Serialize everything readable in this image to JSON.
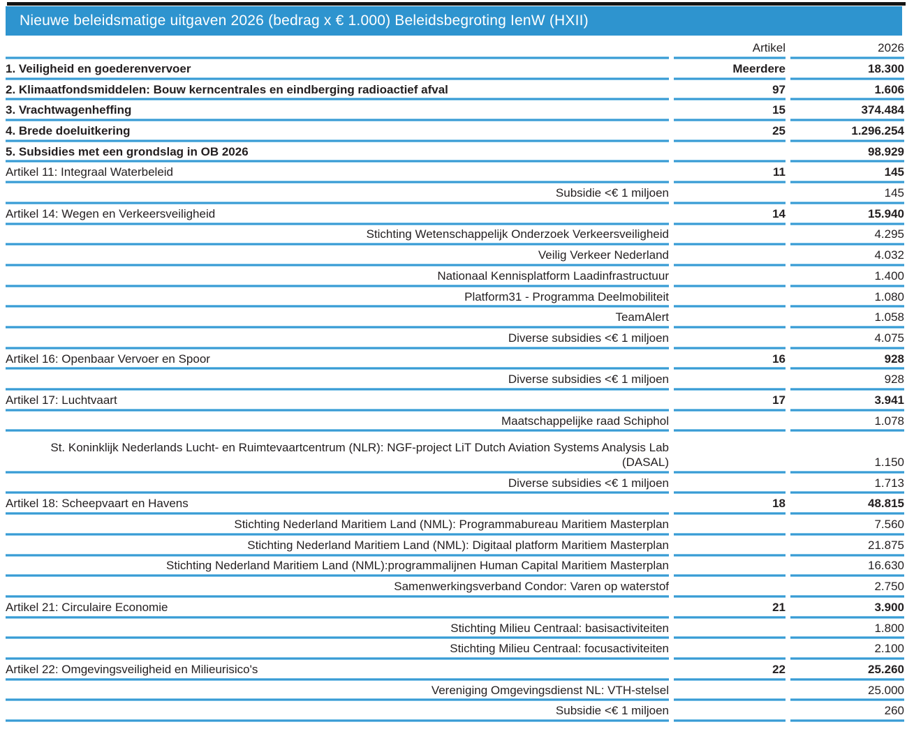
{
  "title": "Nieuwe beleidsmatige uitgaven 2026 (bedrag x € 1.000) Beleidsbegroting IenW (HXII)",
  "columns": {
    "artikel": "Artikel",
    "year": "2026"
  },
  "colors": {
    "accent_blue": "#2e94cf",
    "separator_light": "#a9dcf4",
    "text": "#231f20",
    "title_text": "#ffffff",
    "top_rule": "#141414"
  },
  "rows": [
    {
      "type": "main",
      "label": "1. Veiligheid en goederenvervoer",
      "artikel": "Meerdere",
      "amount": "18.300"
    },
    {
      "type": "main",
      "label": "2. Klimaatfondsmiddelen: Bouw kerncentrales en eindberging radioactief afval",
      "artikel": "97",
      "amount": "1.606"
    },
    {
      "type": "main",
      "label": "3. Vrachtwagenheffing",
      "artikel": "15",
      "amount": "374.484"
    },
    {
      "type": "main",
      "label": "4. Brede doeluitkering",
      "artikel": "25",
      "amount": "1.296.254"
    },
    {
      "type": "main",
      "label": "5. Subsidies met een grondslag in OB 2026",
      "artikel": "",
      "amount": "98.929"
    },
    {
      "type": "artikel",
      "label": "Artikel 11: Integraal Waterbeleid",
      "artikel": "11",
      "amount": "145"
    },
    {
      "type": "sub",
      "label": "Subsidie <€ 1 miljoen",
      "artikel": "",
      "amount": "145"
    },
    {
      "type": "artikel",
      "label": "Artikel 14: Wegen en Verkeersveiligheid",
      "artikel": "14",
      "amount": "15.940"
    },
    {
      "type": "sub",
      "label": "Stichting Wetenschappelijk Onderzoek Verkeersveiligheid",
      "artikel": "",
      "amount": "4.295"
    },
    {
      "type": "sub",
      "label": "Veilig Verkeer Nederland",
      "artikel": "",
      "amount": "4.032"
    },
    {
      "type": "sub",
      "label": "Nationaal Kennisplatform Laadinfrastructuur",
      "artikel": "",
      "amount": "1.400"
    },
    {
      "type": "sub",
      "label": "Platform31 - Programma Deelmobiliteit",
      "artikel": "",
      "amount": "1.080"
    },
    {
      "type": "sub",
      "label": "TeamAlert",
      "artikel": "",
      "amount": "1.058"
    },
    {
      "type": "sub",
      "label": "Diverse subsidies <€ 1 miljoen",
      "artikel": "",
      "amount": "4.075"
    },
    {
      "type": "artikel",
      "label": "Artikel 16: Openbaar Vervoer en Spoor",
      "artikel": "16",
      "amount": "928"
    },
    {
      "type": "sub",
      "label": "Diverse subsidies <€ 1 miljoen",
      "artikel": "",
      "amount": "928"
    },
    {
      "type": "artikel",
      "label": "Artikel 17: Luchtvaart",
      "artikel": "17",
      "amount": "3.941"
    },
    {
      "type": "sub",
      "label": "Maatschappelijke raad Schiphol",
      "artikel": "",
      "amount": "1.078"
    },
    {
      "type": "tall",
      "label": "St. Koninklijk Nederlands Lucht- en Ruimtevaartcentrum (NLR): NGF-project LiT Dutch Aviation Systems Analysis Lab (DASAL)",
      "artikel": "",
      "amount": "1.150"
    },
    {
      "type": "sub",
      "label": "Diverse subsidies <€ 1 miljoen",
      "artikel": "",
      "amount": "1.713"
    },
    {
      "type": "artikel",
      "label": "Artikel 18: Scheepvaart en Havens",
      "artikel": "18",
      "amount": "48.815"
    },
    {
      "type": "sub",
      "label": "Stichting Nederland Maritiem Land (NML): Programmabureau Maritiem Masterplan",
      "artikel": "",
      "amount": "7.560"
    },
    {
      "type": "sub",
      "label": "Stichting Nederland Maritiem Land (NML): Digitaal platform Maritiem Masterplan",
      "artikel": "",
      "amount": "21.875"
    },
    {
      "type": "sub",
      "label": "Stichting Nederland Maritiem Land (NML):programmalijnen Human Capital Maritiem Masterplan",
      "artikel": "",
      "amount": "16.630"
    },
    {
      "type": "sub",
      "label": "Samenwerkingsverband Condor: Varen op waterstof",
      "artikel": "",
      "amount": "2.750"
    },
    {
      "type": "artikel",
      "label": "Artikel 21: Circulaire Economie",
      "artikel": "21",
      "amount": "3.900"
    },
    {
      "type": "sub",
      "label": "Stichting Milieu Centraal: basisactiviteiten",
      "artikel": "",
      "amount": "1.800"
    },
    {
      "type": "sub",
      "label": "Stichting Milieu Centraal: focusactiviteiten",
      "artikel": "",
      "amount": "2.100"
    },
    {
      "type": "artikel",
      "label": "Artikel 22: Omgevingsveiligheid en Milieurisico's",
      "artikel": "22",
      "amount": "25.260"
    },
    {
      "type": "sub",
      "label": "Vereniging Omgevingsdienst NL: VTH-stelsel",
      "artikel": "",
      "amount": "25.000"
    },
    {
      "type": "sub",
      "label": "Subsidie <€ 1 miljoen",
      "artikel": "",
      "amount": "260"
    }
  ]
}
